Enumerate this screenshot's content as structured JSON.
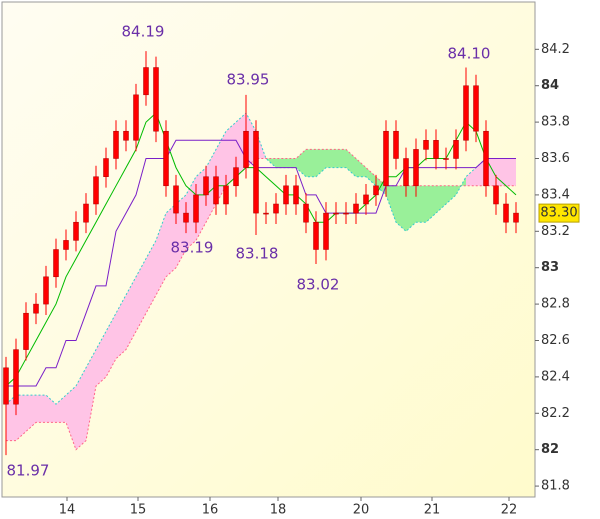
{
  "chart_data": {
    "type": "candlestick",
    "x": [
      0,
      1,
      2,
      3,
      4,
      5,
      6,
      7,
      8,
      9,
      10,
      11,
      12,
      13,
      14,
      15,
      16,
      17,
      18,
      19,
      20,
      21,
      22,
      23,
      24,
      25,
      26,
      27,
      28,
      29,
      30,
      31,
      32,
      33,
      34,
      35,
      36,
      37,
      38,
      39,
      40,
      41,
      42,
      43,
      44,
      45,
      46,
      47,
      48,
      49,
      50,
      51
    ],
    "open": [
      82.45,
      82.25,
      82.55,
      82.75,
      82.8,
      82.95,
      83.1,
      83.15,
      83.25,
      83.35,
      83.5,
      83.6,
      83.75,
      83.7,
      83.95,
      84.1,
      83.75,
      83.45,
      83.3,
      83.25,
      83.4,
      83.5,
      83.35,
      83.45,
      83.55,
      83.75,
      83.3,
      83.3,
      83.35,
      83.45,
      83.35,
      83.25,
      83.1,
      83.3,
      83.3,
      83.3,
      83.35,
      83.4,
      83.45,
      83.75,
      83.6,
      83.45,
      83.65,
      83.7,
      83.6,
      83.6,
      83.7,
      84.0,
      83.75,
      83.45,
      83.35,
      83.25
    ],
    "high": [
      82.51,
      82.61,
      82.81,
      82.86,
      83.01,
      83.16,
      83.21,
      83.31,
      83.41,
      83.56,
      83.66,
      83.81,
      83.81,
      84.01,
      84.19,
      84.16,
      83.81,
      83.51,
      83.36,
      83.46,
      83.56,
      83.56,
      83.51,
      83.61,
      83.95,
      83.81,
      83.36,
      83.41,
      83.51,
      83.51,
      83.41,
      83.31,
      83.36,
      83.36,
      83.36,
      83.41,
      83.46,
      83.51,
      83.81,
      83.81,
      83.66,
      83.71,
      83.76,
      83.76,
      83.66,
      83.76,
      84.1,
      84.06,
      83.81,
      83.51,
      83.41,
      83.36
    ],
    "low": [
      81.97,
      82.19,
      82.49,
      82.69,
      82.74,
      82.89,
      83.04,
      83.09,
      83.19,
      83.29,
      83.44,
      83.54,
      83.64,
      83.64,
      83.89,
      83.69,
      83.39,
      83.24,
      83.19,
      83.19,
      83.34,
      83.29,
      83.29,
      83.39,
      83.49,
      83.18,
      83.24,
      83.24,
      83.29,
      83.29,
      83.19,
      83.02,
      83.04,
      83.24,
      83.24,
      83.24,
      83.29,
      83.34,
      83.39,
      83.54,
      83.39,
      83.39,
      83.59,
      83.54,
      83.54,
      83.54,
      83.64,
      83.69,
      83.39,
      83.29,
      83.19,
      83.19
    ],
    "close": [
      82.25,
      82.55,
      82.75,
      82.8,
      82.95,
      83.1,
      83.15,
      83.25,
      83.35,
      83.5,
      83.6,
      83.75,
      83.7,
      83.95,
      84.1,
      83.75,
      83.45,
      83.3,
      83.25,
      83.4,
      83.5,
      83.35,
      83.45,
      83.55,
      83.75,
      83.3,
      83.3,
      83.35,
      83.45,
      83.35,
      83.25,
      83.1,
      83.3,
      83.3,
      83.3,
      83.35,
      83.4,
      83.45,
      83.75,
      83.6,
      83.45,
      83.65,
      83.7,
      83.6,
      83.6,
      83.7,
      84.0,
      83.75,
      83.45,
      83.35,
      83.25,
      83.3
    ],
    "candle_color": "#ff0000",
    "lines": [
      {
        "color": "#00bb00",
        "values": [
          82.35,
          82.4,
          82.5,
          82.6,
          82.7,
          82.8,
          82.95,
          83.05,
          83.15,
          83.25,
          83.35,
          83.45,
          83.55,
          83.65,
          83.8,
          83.85,
          83.7,
          83.55,
          83.45,
          83.4,
          83.4,
          83.45,
          83.45,
          83.5,
          83.55,
          83.55,
          83.5,
          83.45,
          83.4,
          83.4,
          83.35,
          83.25,
          83.25,
          83.3,
          83.3,
          83.3,
          83.35,
          83.4,
          83.5,
          83.5,
          83.55,
          83.55,
          83.6,
          83.6,
          83.6,
          83.7,
          83.8,
          83.75,
          83.6,
          83.5,
          83.45,
          83.4
        ]
      },
      {
        "color": "#7a1fc8",
        "values": [
          82.35,
          82.35,
          82.35,
          82.35,
          82.45,
          82.45,
          82.6,
          82.6,
          82.75,
          82.9,
          82.9,
          83.2,
          83.3,
          83.4,
          83.6,
          83.6,
          83.6,
          83.7,
          83.7,
          83.7,
          83.7,
          83.7,
          83.7,
          83.7,
          83.6,
          83.55,
          83.55,
          83.55,
          83.55,
          83.55,
          83.4,
          83.4,
          83.3,
          83.3,
          83.3,
          83.3,
          83.3,
          83.3,
          83.45,
          83.45,
          83.55,
          83.55,
          83.55,
          83.55,
          83.55,
          83.55,
          83.55,
          83.55,
          83.6,
          83.6,
          83.6,
          83.6
        ]
      }
    ],
    "cloud": {
      "up_color": "#99f099",
      "down_color": "#ffc4e6",
      "span_a_color": "#ff6688",
      "span_b_color": "#33cccc",
      "span_a": [
        82.05,
        82.05,
        82.1,
        82.15,
        82.15,
        82.15,
        82.15,
        82.0,
        82.05,
        82.35,
        82.4,
        82.5,
        82.55,
        82.65,
        82.75,
        82.85,
        82.95,
        83.0,
        83.1,
        83.15,
        83.25,
        83.35,
        83.45,
        83.5,
        83.55,
        83.6,
        83.6,
        83.6,
        83.6,
        83.6,
        83.65,
        83.65,
        83.65,
        83.65,
        83.65,
        83.6,
        83.55,
        83.5,
        83.45,
        83.45,
        83.45,
        83.45,
        83.45,
        83.45,
        83.45,
        83.45,
        83.45,
        83.45,
        83.45,
        83.45,
        83.45,
        83.45
      ],
      "span_b": [
        82.25,
        82.3,
        82.3,
        82.3,
        82.3,
        82.25,
        82.3,
        82.35,
        82.45,
        82.55,
        82.65,
        82.75,
        82.85,
        82.95,
        83.05,
        83.15,
        83.3,
        83.35,
        83.4,
        83.5,
        83.55,
        83.65,
        83.75,
        83.8,
        83.85,
        83.75,
        83.6,
        83.55,
        83.55,
        83.55,
        83.5,
        83.5,
        83.55,
        83.55,
        83.55,
        83.5,
        83.5,
        83.45,
        83.4,
        83.25,
        83.2,
        83.25,
        83.25,
        83.3,
        83.35,
        83.4,
        83.5,
        83.55,
        83.6,
        83.6,
        83.6,
        83.6
      ]
    },
    "xlim": [
      -0.4,
      52.9
    ],
    "ylim": [
      81.74,
      84.46
    ],
    "yticks": [
      84.2,
      84,
      83.8,
      83.6,
      83.4,
      83.2,
      83,
      82.8,
      82.6,
      82.4,
      82.2,
      82,
      81.8
    ],
    "xticks": [
      {
        "value": 6.1,
        "label": "14"
      },
      {
        "value": 13.2,
        "label": "15"
      },
      {
        "value": 20.4,
        "label": "16"
      },
      {
        "value": 27.2,
        "label": "18"
      },
      {
        "value": 35.5,
        "label": "20"
      },
      {
        "value": 42.6,
        "label": "21"
      },
      {
        "value": 50.3,
        "label": "22"
      }
    ],
    "annotations": [
      "84.19",
      "83.95",
      "83.19",
      "83.18",
      "83.02",
      "84.10",
      "81.97"
    ],
    "last_price_label": "83.30"
  }
}
